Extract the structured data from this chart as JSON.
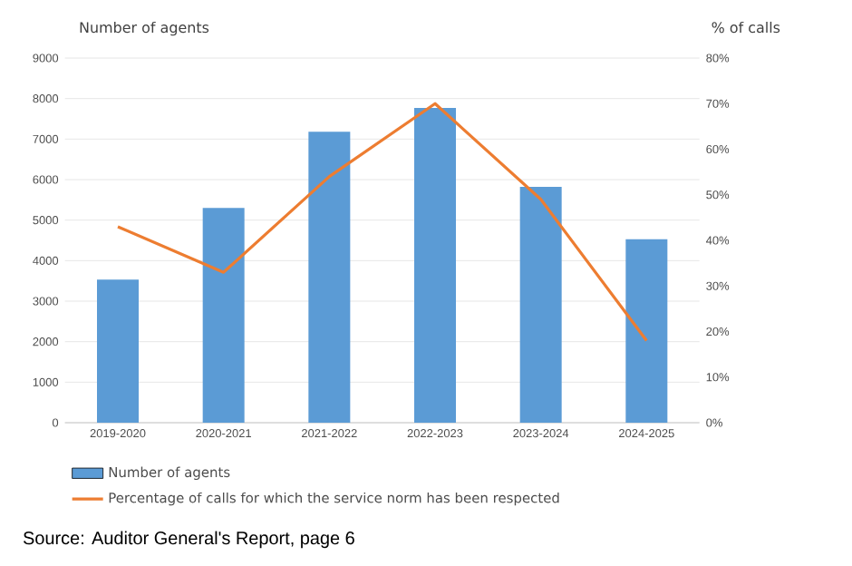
{
  "chart_data": {
    "type": "bar",
    "ylabel": "Number of agents",
    "y2label": "% of calls",
    "categories": [
      "2019-2020",
      "2020-2021",
      "2021-2022",
      "2022-2023",
      "2023-2024",
      "2024-2025"
    ],
    "series": [
      {
        "name": "Number of agents",
        "color": "#5b9bd5",
        "values": [
          3530,
          5300,
          7180,
          7770,
          5820,
          4530
        ]
      },
      {
        "name": "Percentage of calls for which the service norm has been respected",
        "type": "line",
        "axis": "y2",
        "color": "#ed7d31",
        "values": [
          43,
          33,
          54,
          70,
          49,
          18
        ]
      }
    ],
    "ylim": [
      0,
      9000
    ],
    "yticks": [
      0,
      1000,
      2000,
      3000,
      4000,
      5000,
      6000,
      7000,
      8000,
      9000
    ],
    "y2lim": [
      0,
      80
    ],
    "y2ticks": [
      {
        "value": 0,
        "label": "0%"
      },
      {
        "value": 10,
        "label": "10%"
      },
      {
        "value": 20,
        "label": "20%"
      },
      {
        "value": 30,
        "label": "30%"
      },
      {
        "value": 40,
        "label": "40%"
      },
      {
        "value": 50,
        "label": "50%"
      },
      {
        "value": 60,
        "label": "60%"
      },
      {
        "value": 70,
        "label": "70%"
      },
      {
        "value": 80,
        "label": "80%"
      }
    ],
    "grid": "y",
    "legend": "bottom",
    "marker": "none",
    "line_style": "solid",
    "annotations": [
      "Source: Auditor General's Report, page 6"
    ]
  }
}
